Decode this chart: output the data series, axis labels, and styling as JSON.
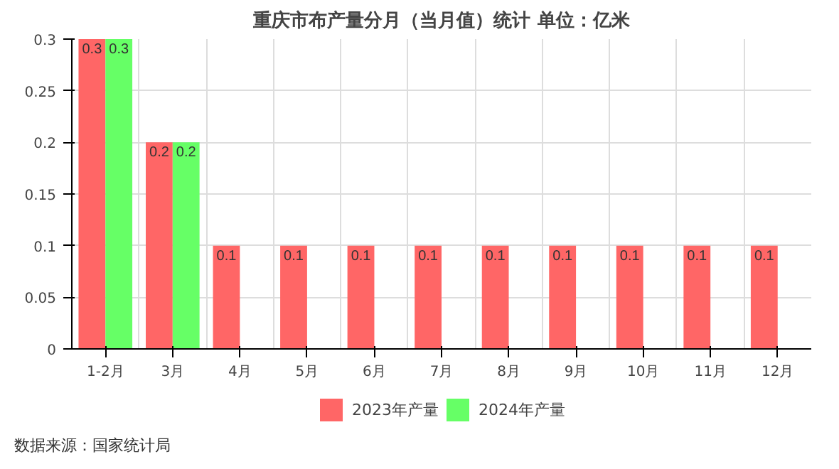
{
  "chart_data": {
    "type": "bar",
    "title": "重庆市布产量分月（当月值）统计 单位：亿米",
    "categories": [
      "1-2月",
      "3月",
      "4月",
      "5月",
      "6月",
      "7月",
      "8月",
      "9月",
      "10月",
      "11月",
      "12月"
    ],
    "series": [
      {
        "name": "2023年产量",
        "color": "#ff6666",
        "values": [
          0.3,
          0.2,
          0.1,
          0.1,
          0.1,
          0.1,
          0.1,
          0.1,
          0.1,
          0.1,
          0.1
        ]
      },
      {
        "name": "2024年产量",
        "color": "#66ff66",
        "values": [
          0.3,
          0.2,
          null,
          null,
          null,
          null,
          null,
          null,
          null,
          null,
          null
        ]
      }
    ],
    "ylim": [
      0,
      0.3
    ],
    "yticks": [
      0,
      0.05,
      0.1,
      0.15,
      0.2,
      0.25,
      0.3
    ],
    "grid": true,
    "legend": "bottom",
    "data_labels": true,
    "annotations": [
      "数据来源：国家统计局"
    ]
  }
}
